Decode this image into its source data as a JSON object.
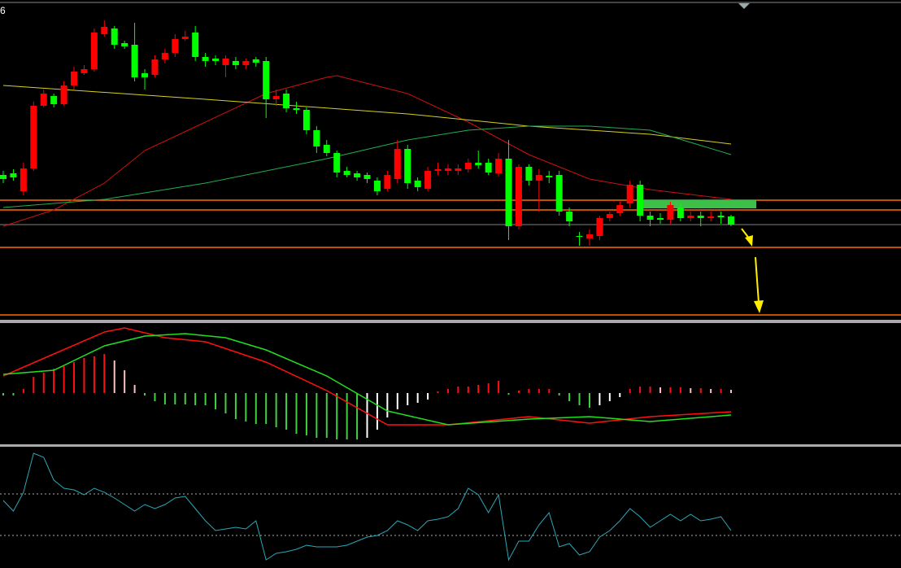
{
  "label": "6",
  "chart_data": [
    {
      "type": "candlestick",
      "up_color": "#ff0000",
      "down_color": "#00ff00",
      "ylim": [
        0,
        400
      ],
      "open": [
        185,
        187,
        165,
        193,
        270,
        282,
        272,
        295,
        310,
        315,
        358,
        365,
        347,
        345,
        310,
        308,
        327,
        335,
        352,
        360,
        330,
        328,
        320,
        325,
        320,
        327,
        325,
        278,
        285,
        267,
        265,
        240,
        222,
        212,
        190,
        187,
        185,
        178,
        168,
        180,
        217,
        178,
        168,
        190,
        190,
        190,
        192,
        200,
        200,
        187,
        205,
        122,
        195,
        178,
        184,
        185,
        140,
        110,
        107,
        110,
        132,
        138,
        150,
        173,
        135,
        132,
        130,
        145,
        132,
        135,
        132,
        135,
        134
      ],
      "high": [
        190,
        192,
        200,
        275,
        290,
        285,
        300,
        318,
        320,
        365,
        375,
        368,
        350,
        372,
        315,
        332,
        340,
        358,
        362,
        368,
        335,
        332,
        332,
        330,
        328,
        330,
        330,
        290,
        290,
        275,
        268,
        245,
        228,
        215,
        195,
        190,
        188,
        182,
        190,
        228,
        222,
        182,
        195,
        200,
        198,
        198,
        205,
        215,
        205,
        212,
        228,
        198,
        198,
        192,
        190,
        190,
        145,
        115,
        118,
        135,
        140,
        152,
        178,
        178,
        140,
        138,
        152,
        150,
        140,
        140,
        140,
        140,
        136
      ],
      "low": [
        175,
        178,
        160,
        190,
        268,
        268,
        270,
        290,
        308,
        312,
        355,
        340,
        340,
        300,
        290,
        305,
        322,
        330,
        350,
        325,
        318,
        320,
        305,
        315,
        315,
        318,
        255,
        270,
        262,
        260,
        235,
        212,
        208,
        182,
        182,
        178,
        175,
        160,
        165,
        175,
        168,
        165,
        165,
        185,
        185,
        185,
        188,
        193,
        185,
        183,
        105,
        118,
        172,
        140,
        175,
        135,
        122,
        98,
        98,
        105,
        128,
        135,
        145,
        128,
        122,
        125,
        125,
        128,
        128,
        122,
        128,
        125,
        122
      ],
      "close": [
        180,
        182,
        193,
        270,
        285,
        272,
        295,
        312,
        315,
        360,
        367,
        345,
        343,
        305,
        305,
        327,
        335,
        352,
        355,
        330,
        325,
        325,
        328,
        320,
        325,
        323,
        278,
        282,
        267,
        265,
        240,
        220,
        212,
        188,
        185,
        182,
        180,
        165,
        185,
        217,
        175,
        170,
        190,
        192,
        193,
        193,
        200,
        197,
        188,
        205,
        122,
        195,
        178,
        185,
        182,
        140,
        128,
        109,
        112,
        132,
        137,
        148,
        173,
        135,
        130,
        130,
        148,
        132,
        135,
        132,
        134,
        133,
        124
      ],
      "averages": [
        {
          "color": "#d01010",
          "x": [
            0,
            5,
            10,
            14,
            20,
            26,
            32,
            33,
            40,
            46,
            52,
            58,
            64,
            72
          ],
          "values": [
            122,
            142,
            175,
            215,
            250,
            285,
            305,
            307,
            285,
            250,
            210,
            180,
            167,
            155
          ]
        },
        {
          "color": "#d8d020",
          "x": [
            0,
            20,
            40,
            52,
            64,
            72
          ],
          "values": [
            295,
            278,
            260,
            245,
            235,
            223
          ]
        },
        {
          "color": "#20b050",
          "x": [
            0,
            10,
            20,
            32,
            40,
            46,
            52,
            58,
            64,
            68,
            72
          ],
          "values": [
            145,
            155,
            175,
            205,
            228,
            240,
            245,
            245,
            240,
            225,
            210
          ]
        }
      ],
      "levels": [
        {
          "value": 154,
          "color": "#ff6a00"
        },
        {
          "value": 142,
          "color": "#ff6a00"
        },
        {
          "value": 124,
          "color": "#555555"
        },
        {
          "value": 96,
          "color": "#ff6a00"
        },
        {
          "value": 13,
          "color": "#ff6a00"
        }
      ],
      "zone": {
        "from": 63,
        "to": 74.5,
        "low": 144,
        "high": 154,
        "color": "#3cc048"
      }
    },
    {
      "type": "macd",
      "ylim": [
        -62,
        86
      ],
      "pos_color": "#ff1010",
      "pos_fade_color": "#ffc0c0",
      "neg_color": "#40d040",
      "neg_fade_color": "#ffffff",
      "histogram": [
        -3,
        -3,
        5,
        20,
        25,
        30,
        33,
        38,
        43,
        45,
        48,
        40,
        28,
        10,
        -3,
        -10,
        -14,
        -14,
        -14,
        -15,
        -15,
        -20,
        -25,
        -32,
        -35,
        -38,
        -38,
        -42,
        -45,
        -50,
        -52,
        -55,
        -55,
        -57,
        -57,
        -57,
        -55,
        -45,
        -30,
        -20,
        -15,
        -12,
        -8,
        2,
        5,
        8,
        8,
        10,
        12,
        15,
        -2,
        3,
        5,
        5,
        5,
        -3,
        -10,
        -15,
        -18,
        -15,
        -10,
        -5,
        5,
        8,
        8,
        7,
        7,
        7,
        6,
        6,
        5,
        5,
        4
      ],
      "lines": [
        {
          "color": "#ff1010",
          "x": [
            0,
            5,
            10,
            12,
            16,
            20,
            26,
            32,
            38,
            44,
            52,
            58,
            64,
            72
          ],
          "values": [
            21,
            48,
            75,
            80,
            68,
            63,
            38,
            3,
            -39,
            -39,
            -29,
            -37,
            -29,
            -23
          ]
        },
        {
          "color": "#20e020",
          "x": [
            0,
            5,
            10,
            14,
            18,
            22,
            26,
            32,
            38,
            44,
            52,
            58,
            64,
            72
          ],
          "values": [
            23,
            28,
            58,
            70,
            73,
            68,
            53,
            21,
            -22,
            -39,
            -32,
            -29,
            -35,
            -27
          ]
        }
      ]
    },
    {
      "type": "line",
      "ylim": [
        0,
        148
      ],
      "color": "#2aa8b8",
      "levels": [
        91,
        40
      ],
      "values": [
        83,
        70,
        93,
        141,
        136,
        108,
        98,
        96,
        90,
        98,
        93,
        86,
        78,
        70,
        78,
        73,
        78,
        86,
        88,
        73,
        58,
        46,
        48,
        50,
        48,
        58,
        10,
        18,
        20,
        23,
        28,
        26,
        26,
        26,
        28,
        33,
        38,
        40,
        46,
        58,
        53,
        46,
        58,
        60,
        63,
        73,
        98,
        90,
        68,
        90,
        10,
        33,
        33,
        53,
        68,
        26,
        30,
        16,
        20,
        38,
        46,
        58,
        73,
        63,
        50,
        58,
        66,
        58,
        66,
        58,
        60,
        63,
        46
      ]
    }
  ]
}
